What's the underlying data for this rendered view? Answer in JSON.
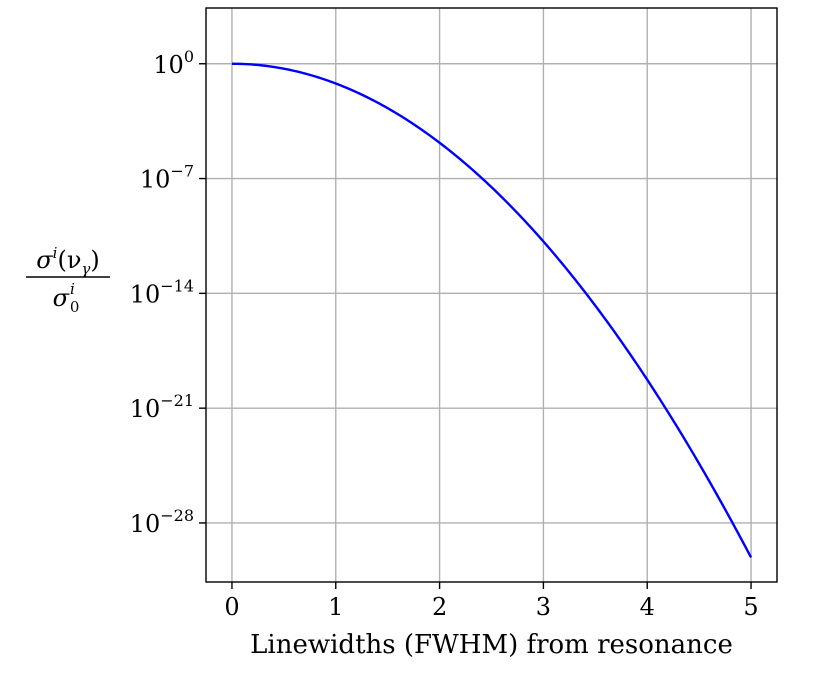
{
  "chart_data": {
    "type": "line",
    "title": "",
    "xlabel": "Linewidths (FWHM) from resonance",
    "ylabel": {
      "numerator_base": "σ",
      "numerator_sup": "i",
      "numerator_args": "(ν",
      "numerator_sub": "γ",
      "numerator_close": ")",
      "denominator_base": "σ",
      "denominator_sup": "i",
      "denominator_sub": "0"
    },
    "y_scale": "log",
    "xlim": [
      -0.25,
      5.25
    ],
    "ylim_log10": [
      -31.6,
      3.4
    ],
    "x_ticks": [
      {
        "value": 0,
        "label": "0"
      },
      {
        "value": 1,
        "label": "1"
      },
      {
        "value": 2,
        "label": "2"
      },
      {
        "value": 3,
        "label": "3"
      },
      {
        "value": 4,
        "label": "4"
      },
      {
        "value": 5,
        "label": "5"
      }
    ],
    "y_ticks": [
      {
        "exp": 0,
        "base": "10",
        "sup": "0"
      },
      {
        "exp": -7,
        "base": "10",
        "sup": "−7"
      },
      {
        "exp": -14,
        "base": "10",
        "sup": "−14"
      },
      {
        "exp": -21,
        "base": "10",
        "sup": "−21"
      },
      {
        "exp": -28,
        "base": "10",
        "sup": "−28"
      }
    ],
    "grid": true,
    "series": [
      {
        "color": "#0000ff",
        "function": "exp(-4 ln2 x^2)",
        "x_range": [
          0,
          5
        ]
      }
    ]
  }
}
